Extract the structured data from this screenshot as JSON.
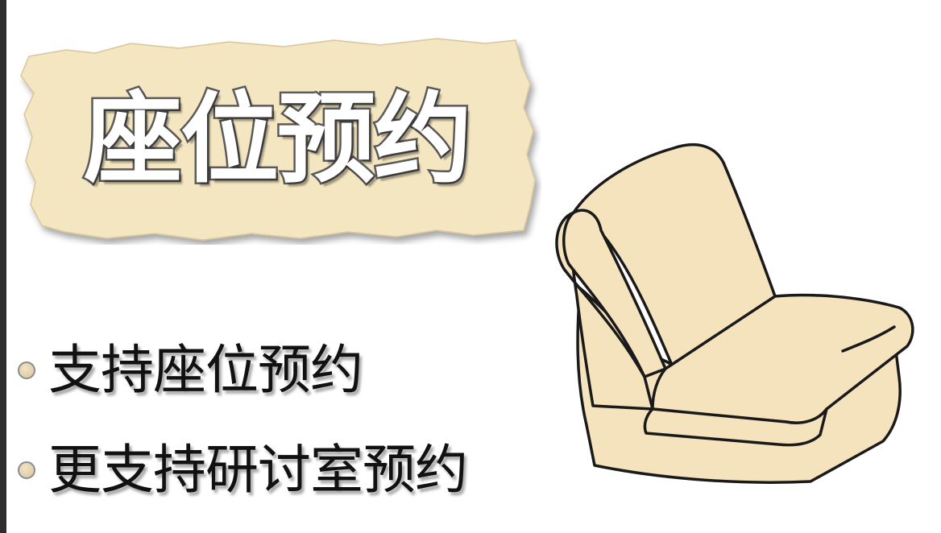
{
  "slide": {
    "title": "座位预约",
    "bullets": [
      "支持座位预约",
      "更支持研讨室预约"
    ]
  },
  "colors": {
    "banner_fill": "#f4e6c0",
    "chair_fill": "#f4e3bd",
    "chair_outline": "#1a1a1a",
    "text": "#111111"
  },
  "icons": {
    "bullet": "circle-bullet-icon",
    "illustration": "armchair-icon"
  }
}
